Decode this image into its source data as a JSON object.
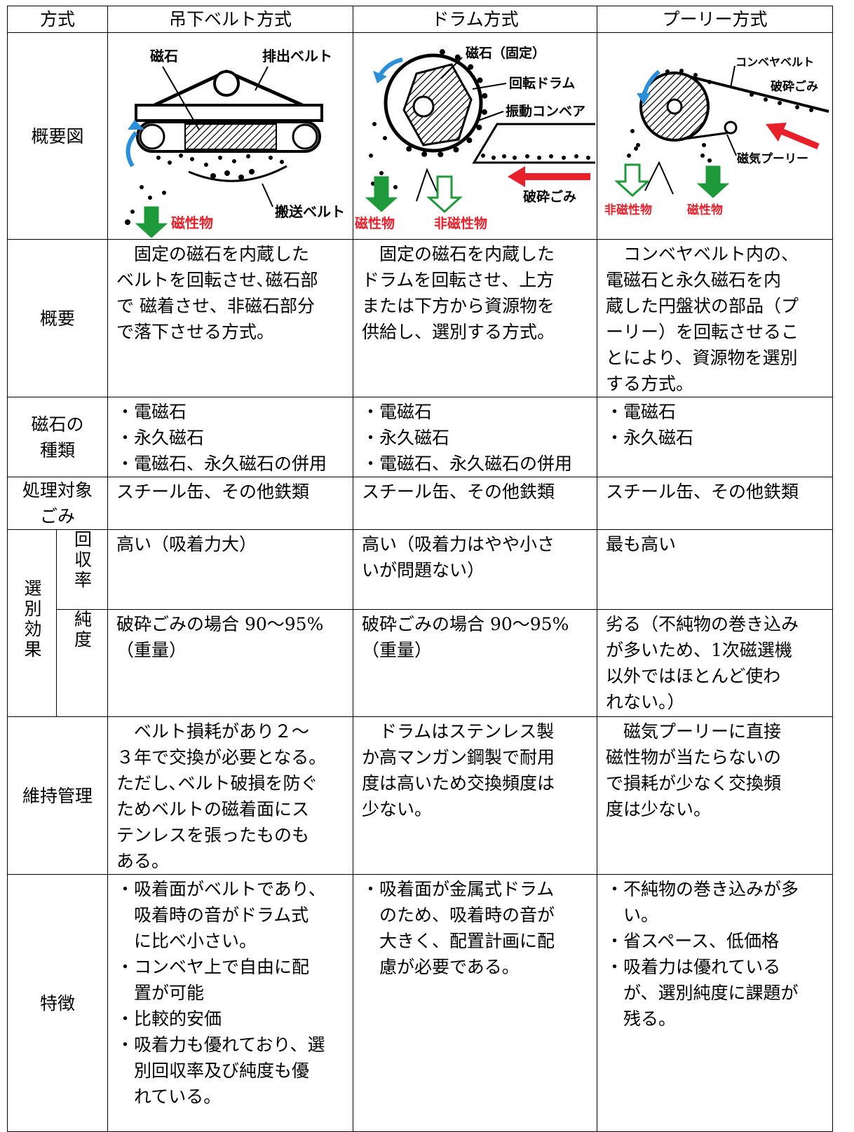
{
  "table": {
    "header": [
      "方式",
      "吊下ベルト方式",
      "ドラム方式",
      "プーリー方式"
    ],
    "rows": [
      {
        "label": [
          "概要図"
        ],
        "cells": [
          {
            "labels": [
              "磁石",
              "排出ベルト",
              "搬送ベルト",
              "磁性物"
            ]
          },
          {
            "labels": [
              "磁石（固定）",
              "回転ドラム",
              "振動コンベア",
              "破砕ごみ",
              "磁性物",
              "非磁性物"
            ]
          },
          {
            "labels": [
              "コンベヤベルト",
              "破砕ごみ",
              "磁気プーリー",
              "非磁性物",
              "磁性物"
            ]
          }
        ]
      },
      {
        "label": [
          "概要"
        ],
        "cells": [
          {
            "lines": [
              "固定の磁石を内蔵した",
              "ベルトを回転させ､磁石部",
              "で 磁着させ、非磁石部分",
              "で落下させる方式。"
            ]
          },
          {
            "lines": [
              "固定の磁石を内蔵した",
              "ドラムを回転させ、上方",
              "または下方から資源物を",
              "供給し、選別する方式。"
            ]
          },
          {
            "lines": [
              "コンベヤベルト内の、",
              "電磁石と永久磁石を内",
              "蔵した円盤状の部品（プ",
              "ーリー）を回転させるこ",
              "とにより、資源物を選別",
              "する方式。"
            ]
          }
        ]
      },
      {
        "label": [
          "磁石の",
          "種類"
        ],
        "cells": [
          {
            "lines": [
              "・電磁石",
              "・永久磁石",
              "・電磁石、永久磁石の併用"
            ]
          },
          {
            "lines": [
              "・電磁石",
              "・永久磁石",
              "・電磁石、永久磁石の併用"
            ]
          },
          {
            "lines": [
              "・電磁石",
              "・永久磁石"
            ]
          }
        ]
      },
      {
        "label": [
          "処理対象",
          "ごみ"
        ],
        "cells": [
          {
            "lines": [
              "スチール缶、その他鉄類"
            ]
          },
          {
            "lines": [
              "スチール缶、その他鉄類"
            ]
          },
          {
            "lines": [
              "スチール缶、その他鉄類"
            ]
          }
        ]
      },
      {
        "label": "選別効果",
        "rows": [
          {
            "label": "回収率",
            "cells": [
              {
                "lines": [
                  "高い（吸着力大）"
                ]
              },
              {
                "lines": [
                  "高い（吸着力はやや小さ",
                  "いが問題ない）"
                ]
              },
              {
                "lines": [
                  "最も高い"
                ]
              }
            ]
          },
          {
            "label": "純度",
            "cells": [
              {
                "lines": [
                  "破砕ごみの場合 90～95%",
                  "（重量）"
                ]
              },
              {
                "lines": [
                  "破砕ごみの場合 90～95%",
                  "（重量）"
                ]
              },
              {
                "lines": [
                  "劣る（不純物の巻き込み",
                  "が多いため、1次磁選機",
                  "以外ではほとんど使わ",
                  "れない。）"
                ]
              }
            ]
          }
        ]
      },
      {
        "label": [
          "維持管理"
        ],
        "cells": [
          {
            "lines": [
              "ベルト損耗があり２～",
              "３年で交換が必要となる。",
              "ただし､ベルト破損を防ぐ",
              "ためベルトの磁着面にス",
              "テンレスを張ったものも",
              "ある。"
            ]
          },
          {
            "lines": [
              "ドラムはステンレス製",
              "か高マンガン鋼製で耐用",
              "度は高いため交換頻度は",
              "少ない。"
            ]
          },
          {
            "lines": [
              "磁気プーリーに直接",
              "磁性物が当たらないの",
              "で損耗が少なく交換頻",
              "度は少ない。"
            ]
          }
        ]
      },
      {
        "label": [
          "特徴"
        ],
        "cells": [
          {
            "items": [
              [
                "・吸着面がベルトであり、",
                "吸着時の音がドラム式",
                "に比べ小さい。"
              ],
              [
                "・コンベヤ上で自由に配",
                "置が可能"
              ],
              [
                "・比較的安価"
              ],
              [
                "・吸着力も優れており、選",
                "別回収率及び純度も優",
                "れている。"
              ]
            ]
          },
          {
            "items": [
              [
                "・吸着面が金属式ドラム",
                "のため、吸着時の音が",
                "大きく、配置計画に配",
                "慮が必要である。"
              ]
            ]
          },
          {
            "items": [
              [
                "・不純物の巻き込みが多",
                "い。"
              ],
              [
                "・省スペース、低価格"
              ],
              [
                "・吸着力は優れている",
                "が、選別純度に課題が",
                "残る。"
              ]
            ]
          }
        ]
      }
    ]
  }
}
